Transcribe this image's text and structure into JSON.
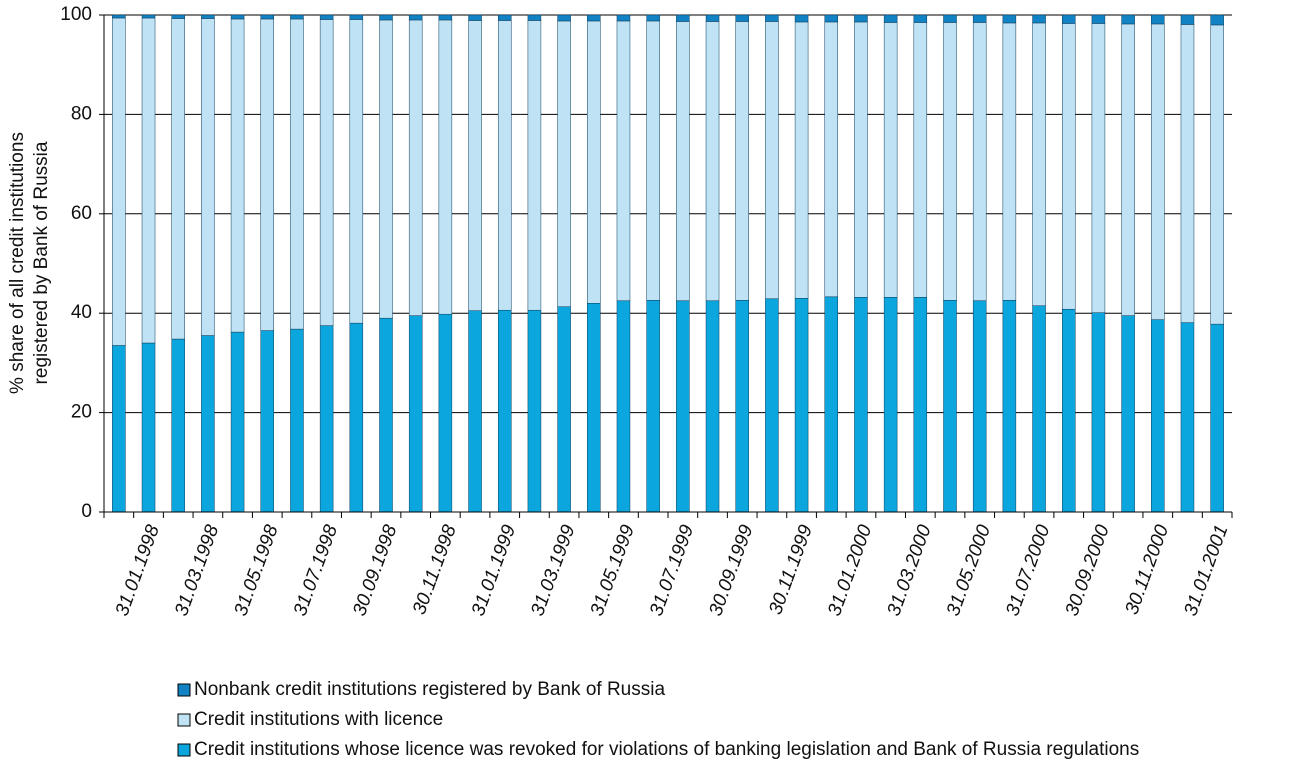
{
  "chart_data": {
    "type": "stacked_bar",
    "y_label": [
      "% share of all credit institutions",
      "registered by Bank of Russia"
    ],
    "categories": [
      null,
      "31.01.1998",
      null,
      "31.03.1998",
      null,
      "31.05.1998",
      null,
      "31.07.1998",
      null,
      "30.09.1998",
      null,
      "30.11.1998",
      null,
      "31.01.1999",
      null,
      "31.03.1999",
      null,
      "31.05.1999",
      null,
      "31.07.1999",
      null,
      "30.09.1999",
      null,
      "30.11.1999",
      null,
      "31.01.2000",
      null,
      "31.03.2000",
      null,
      "31.05.2000",
      null,
      "31.07.2000",
      null,
      "30.09.2000",
      null,
      "30.11.2000",
      null,
      "31.01.2001"
    ],
    "series": [
      {
        "name": "Credit institutions whose licence was revoked for violations of banking legislation and Bank of Russia regulations",
        "color": "#0aa6dd",
        "values": [
          33.5,
          34,
          34.8,
          35.5,
          36.2,
          36.5,
          36.8,
          37.5,
          38,
          39,
          39.5,
          39.8,
          40.5,
          40.6,
          40.6,
          41.3,
          42,
          42.5,
          42.6,
          42.5,
          42.5,
          42.6,
          42.9,
          43,
          43.3,
          43.2,
          43.2,
          43.2,
          42.6,
          42.5,
          42.6,
          41.5,
          40.8,
          40.1,
          39.5,
          38.7,
          38.1,
          37.8
        ]
      },
      {
        "name": "Credit institutions with licence",
        "color": "#bfe3f4",
        "values": [
          65.9,
          65.4,
          64.5,
          63.8,
          63.0,
          62.7,
          62.4,
          61.6,
          61.1,
          60.0,
          59.5,
          59.2,
          58.4,
          58.3,
          58.3,
          57.5,
          56.8,
          56.3,
          56.2,
          56.2,
          56.2,
          56.1,
          55.8,
          55.6,
          55.3,
          55.4,
          55.3,
          55.3,
          55.9,
          56.0,
          55.8,
          56.9,
          57.5,
          58.2,
          58.7,
          59.5,
          60.0,
          60.2
        ]
      },
      {
        "name": "Nonbank credit institutions registered by Bank of Russia",
        "color": "#1182c4",
        "values": [
          0.6,
          0.6,
          0.7,
          0.7,
          0.8,
          0.8,
          0.8,
          0.9,
          0.9,
          1.0,
          1.0,
          1.0,
          1.1,
          1.1,
          1.1,
          1.2,
          1.2,
          1.2,
          1.2,
          1.3,
          1.3,
          1.3,
          1.3,
          1.4,
          1.4,
          1.4,
          1.5,
          1.5,
          1.5,
          1.5,
          1.6,
          1.6,
          1.7,
          1.7,
          1.8,
          1.8,
          1.9,
          2.0
        ]
      }
    ],
    "ylim": [
      0,
      100
    ],
    "yticks": [
      0,
      20,
      40,
      60,
      80,
      100
    ],
    "grid": true
  }
}
